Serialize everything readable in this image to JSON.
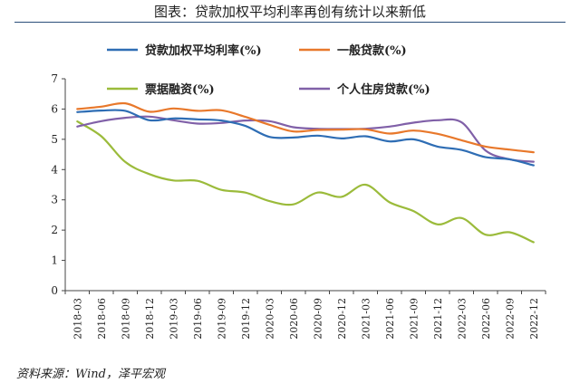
{
  "header": {
    "title": "图表：贷款加权平均利率再创有统计以来新低"
  },
  "footer": {
    "source": "资料来源：Wind，泽平宏观"
  },
  "chart_data": {
    "type": "line",
    "ylim": [
      0,
      7
    ],
    "yticks": [
      0,
      1,
      2,
      3,
      4,
      5,
      6,
      7
    ],
    "x_ticks": [
      "2018-03",
      "2018-06",
      "2018-09",
      "2018-12",
      "2019-03",
      "2019-06",
      "2019-09",
      "2019-12",
      "2020-03",
      "2020-06",
      "2020-09",
      "2020-12",
      "2021-03",
      "2021-06",
      "2021-09",
      "2021-12",
      "2022-03",
      "2022-06",
      "2022-09",
      "2022-12"
    ],
    "legend_position": "top",
    "grid": false,
    "series": [
      {
        "name": "贷款加权平均利率(%)",
        "color": "#2e6db4",
        "values": [
          5.9,
          5.95,
          5.94,
          5.63,
          5.69,
          5.66,
          5.62,
          5.44,
          5.08,
          5.06,
          5.12,
          5.03,
          5.1,
          4.93,
          5.0,
          4.76,
          4.65,
          4.41,
          4.34,
          4.14
        ]
      },
      {
        "name": "一般贷款(%)",
        "color": "#e8782b",
        "values": [
          6.0,
          6.08,
          6.19,
          5.91,
          6.02,
          5.94,
          5.96,
          5.74,
          5.48,
          5.26,
          5.31,
          5.32,
          5.33,
          5.19,
          5.29,
          5.18,
          4.97,
          4.76,
          4.66,
          4.57
        ]
      },
      {
        "name": "票据融资(%)",
        "color": "#9bbb3b",
        "values": [
          5.59,
          5.1,
          4.25,
          3.85,
          3.64,
          3.63,
          3.33,
          3.24,
          2.96,
          2.85,
          3.24,
          3.1,
          3.5,
          2.92,
          2.63,
          2.19,
          2.4,
          1.85,
          1.93,
          1.6
        ]
      },
      {
        "name": "个人住房贷款(%)",
        "color": "#8060a8",
        "values": [
          5.42,
          5.6,
          5.71,
          5.75,
          5.63,
          5.52,
          5.54,
          5.62,
          5.6,
          5.4,
          5.35,
          5.34,
          5.35,
          5.42,
          5.55,
          5.63,
          5.56,
          4.63,
          4.34,
          4.26
        ]
      }
    ]
  }
}
